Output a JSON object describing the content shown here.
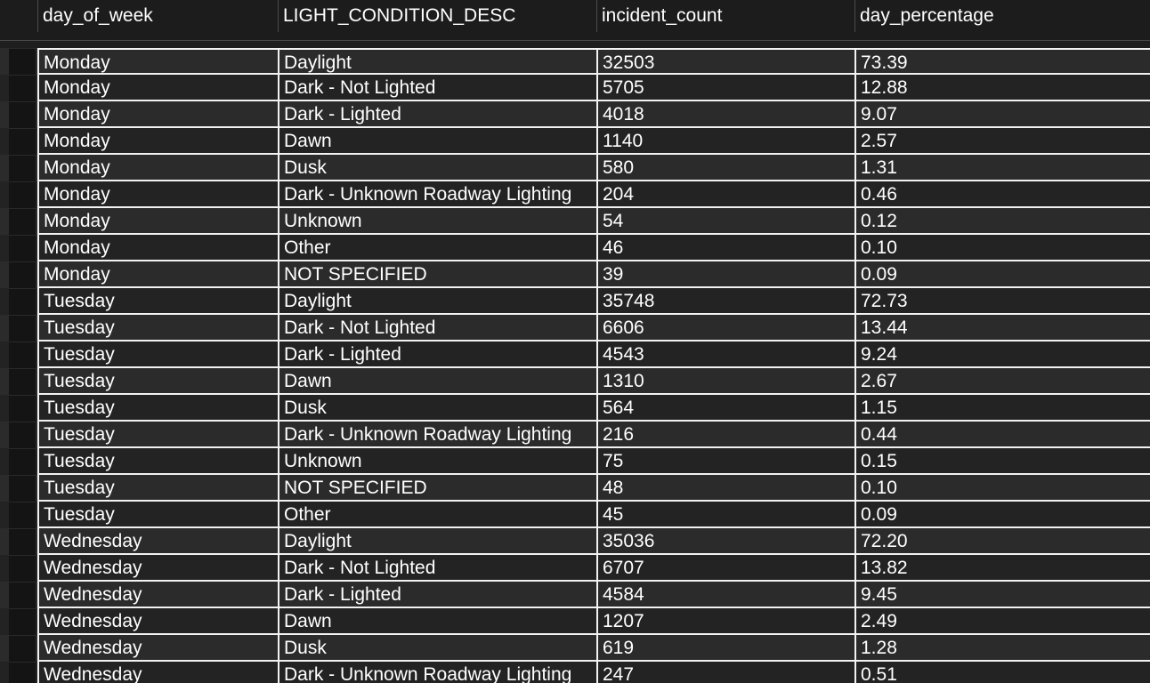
{
  "columns": [
    "day_of_week",
    "LIGHT_CONDITION_DESC",
    "incident_count",
    "day_percentage"
  ],
  "rows": [
    [
      "Monday",
      "Daylight",
      "32503",
      "73.39"
    ],
    [
      "Monday",
      "Dark - Not Lighted",
      "5705",
      "12.88"
    ],
    [
      "Monday",
      "Dark - Lighted",
      "4018",
      "9.07"
    ],
    [
      "Monday",
      "Dawn",
      "1140",
      "2.57"
    ],
    [
      "Monday",
      "Dusk",
      "580",
      "1.31"
    ],
    [
      "Monday",
      "Dark - Unknown Roadway Lighting",
      "204",
      "0.46"
    ],
    [
      "Monday",
      "Unknown",
      "54",
      "0.12"
    ],
    [
      "Monday",
      "Other",
      "46",
      "0.10"
    ],
    [
      "Monday",
      "NOT SPECIFIED",
      "39",
      "0.09"
    ],
    [
      "Tuesday",
      "Daylight",
      "35748",
      "72.73"
    ],
    [
      "Tuesday",
      "Dark - Not Lighted",
      "6606",
      "13.44"
    ],
    [
      "Tuesday",
      "Dark - Lighted",
      "4543",
      "9.24"
    ],
    [
      "Tuesday",
      "Dawn",
      "1310",
      "2.67"
    ],
    [
      "Tuesday",
      "Dusk",
      "564",
      "1.15"
    ],
    [
      "Tuesday",
      "Dark - Unknown Roadway Lighting",
      "216",
      "0.44"
    ],
    [
      "Tuesday",
      "Unknown",
      "75",
      "0.15"
    ],
    [
      "Tuesday",
      "NOT SPECIFIED",
      "48",
      "0.10"
    ],
    [
      "Tuesday",
      "Other",
      "45",
      "0.09"
    ],
    [
      "Wednesday",
      "Daylight",
      "35036",
      "72.20"
    ],
    [
      "Wednesday",
      "Dark - Not Lighted",
      "6707",
      "13.82"
    ],
    [
      "Wednesday",
      "Dark - Lighted",
      "4584",
      "9.45"
    ],
    [
      "Wednesday",
      "Dawn",
      "1207",
      "2.49"
    ],
    [
      "Wednesday",
      "Dusk",
      "619",
      "1.28"
    ],
    [
      "Wednesday",
      "Dark - Unknown Roadway Lighting",
      "247",
      "0.51"
    ]
  ]
}
